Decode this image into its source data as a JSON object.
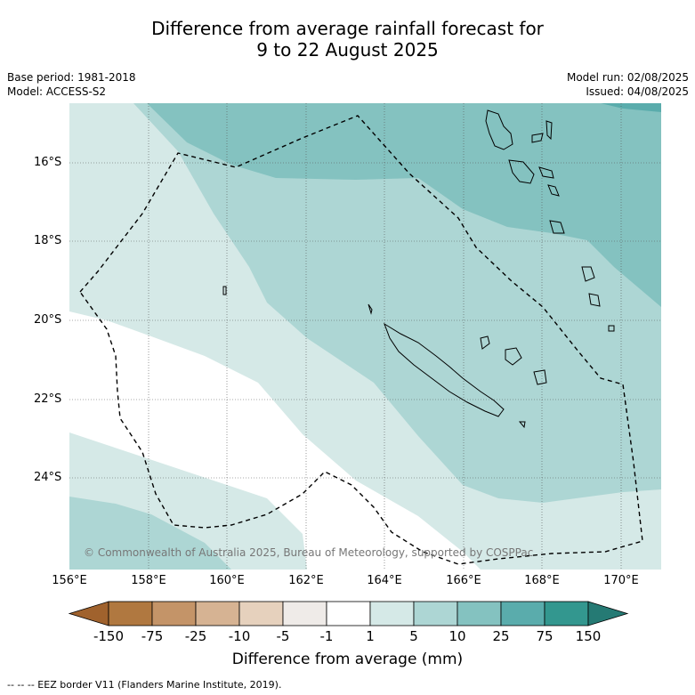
{
  "title": {
    "line1": "Difference from average rainfall forecast for",
    "line2": "9 to 22 August 2025"
  },
  "meta": {
    "base_period": "Base period: 1981-2018",
    "model": "Model: ACCESS-S2",
    "model_run": "Model run: 02/08/2025",
    "issued": "Issued: 04/08/2025"
  },
  "map": {
    "lon_ticks": [
      "156°E",
      "158°E",
      "160°E",
      "162°E",
      "164°E",
      "166°E",
      "168°E",
      "170°E"
    ],
    "lat_ticks": [
      "16°S",
      "18°S",
      "20°S",
      "22°S",
      "24°S"
    ],
    "copyright": "© Commonwealth of Australia 2025, Bureau of Meteorology, supported by COSPPac"
  },
  "colorbar": {
    "labels": [
      "-150",
      "-75",
      "-25",
      "-10",
      "-5",
      "-1",
      "1",
      "5",
      "10",
      "25",
      "75",
      "150"
    ],
    "colors": [
      "#a0622d",
      "#b07840",
      "#c49468",
      "#d6b393",
      "#e6d1bd",
      "#efebe8",
      "#ffffff",
      "#d5e9e7",
      "#add6d4",
      "#84c2c0",
      "#5aacac",
      "#33978f",
      "#257a74"
    ],
    "title": "Difference from average (mm)"
  },
  "footer": "--  --  -- EEZ border V11 (Flanders Marine Institute, 2019)."
}
